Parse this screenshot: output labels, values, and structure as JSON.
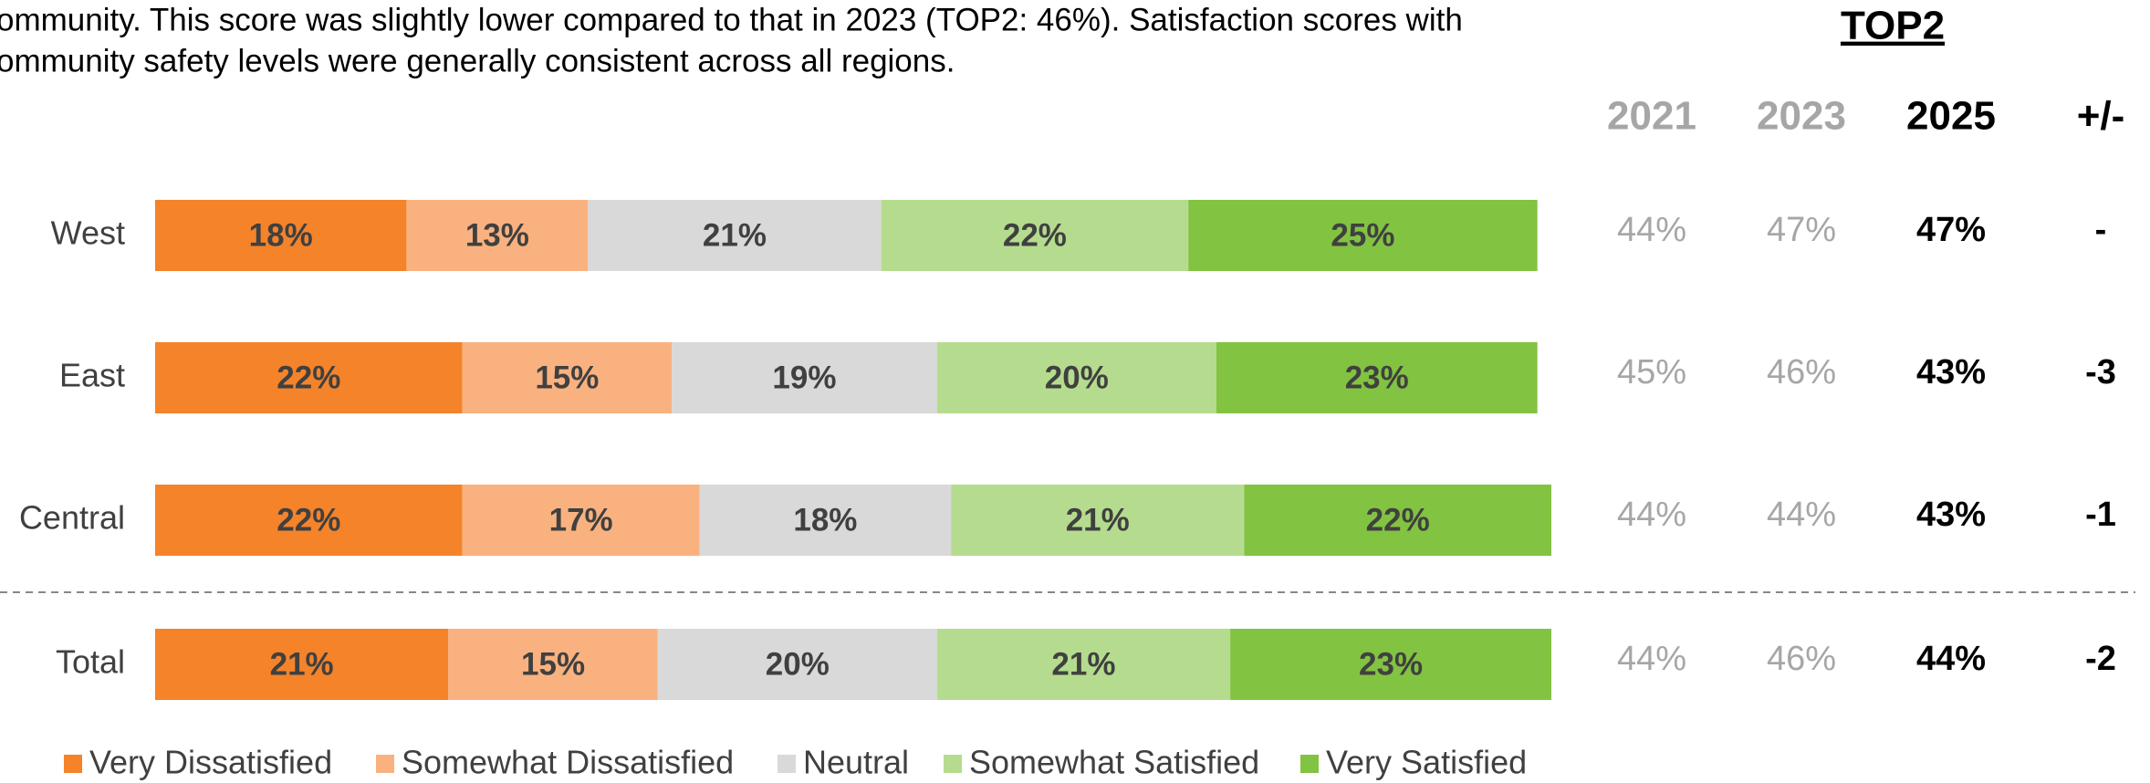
{
  "intro": {
    "lines": [
      "ommunity. This score was slightly lower compared to that in 2023 (TOP2: 46%). Satisfaction scores with",
      "ommunity safety levels were generally consistent across all regions."
    ]
  },
  "chart_data": {
    "type": "stacked-bar",
    "categories": [
      "West",
      "East",
      "Central",
      "Total"
    ],
    "xlim": [
      0,
      100
    ],
    "series": [
      {
        "name": "Very Dissatisfied",
        "color": "#f5832a",
        "values": [
          18,
          22,
          22,
          21
        ],
        "value_labels": [
          "18%",
          "22%",
          "22%",
          "21%"
        ]
      },
      {
        "name": "Somewhat Dissatisfied",
        "color": "#f9b27f",
        "values": [
          13,
          15,
          17,
          15
        ],
        "value_labels": [
          "13%",
          "15%",
          "17%",
          "15%"
        ]
      },
      {
        "name": "Neutral",
        "color": "#d9d9d9",
        "values": [
          21,
          19,
          18,
          20
        ],
        "value_labels": [
          "21%",
          "19%",
          "18%",
          "20%"
        ]
      },
      {
        "name": "Somewhat Satisfied",
        "color": "#b5dc8e",
        "values": [
          22,
          20,
          21,
          21
        ],
        "value_labels": [
          "22%",
          "20%",
          "21%",
          "21%"
        ]
      },
      {
        "name": "Very Satisfied",
        "color": "#82c341",
        "values": [
          25,
          23,
          22,
          23
        ],
        "value_labels": [
          "25%",
          "23%",
          "22%",
          "23%"
        ]
      }
    ]
  },
  "table": {
    "title": "TOP2",
    "columns": [
      "2021",
      "2023",
      "2025",
      "+/-"
    ],
    "rows": [
      [
        "44%",
        "47%",
        "47%",
        "-"
      ],
      [
        "45%",
        "46%",
        "43%",
        "-3"
      ],
      [
        "44%",
        "44%",
        "43%",
        "-1"
      ],
      [
        "44%",
        "46%",
        "44%",
        "-2"
      ]
    ]
  }
}
